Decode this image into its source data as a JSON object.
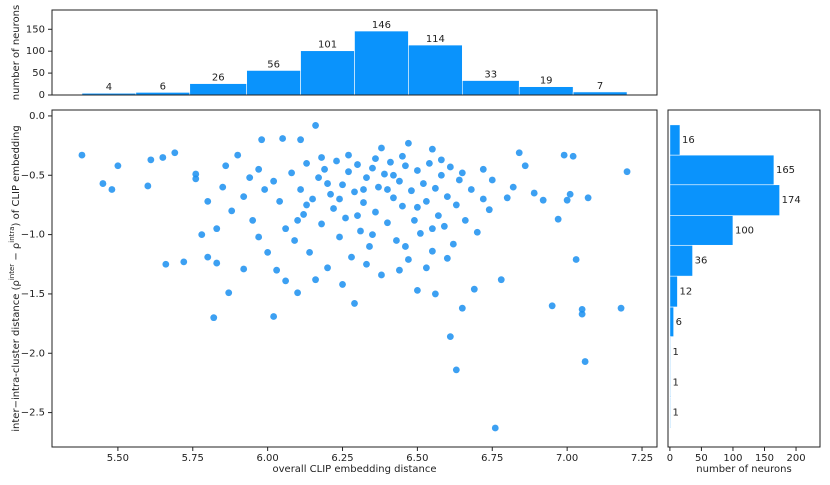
{
  "chart_data": [
    {
      "type": "histogram",
      "ylabel": "number of neurons",
      "bins": [
        5.38,
        5.56,
        5.74,
        5.93,
        6.11,
        6.29,
        6.47,
        6.65,
        6.84,
        7.02,
        7.2
      ],
      "values": [
        4,
        6,
        26,
        56,
        101,
        146,
        114,
        33,
        19,
        7
      ],
      "xlim": [
        5.28,
        7.3
      ],
      "ylim": [
        0,
        194
      ],
      "yticks": [
        0,
        50,
        100,
        150
      ],
      "color": "#0a93fc"
    },
    {
      "type": "scatter",
      "xlabel": "overall CLIP embedding distance",
      "ylabel_parts": [
        "inter−intra-cluster distance (",
        "ρ",
        "inter",
        " − ",
        "ρ",
        "intra",
        ") of CLIP embedding"
      ],
      "x": [
        5.38,
        5.45,
        5.48,
        5.5,
        5.6,
        5.61,
        5.65,
        5.69,
        5.66,
        5.72,
        5.76,
        5.76,
        5.8,
        5.82,
        5.83,
        5.87,
        5.92,
        5.98,
        6.02,
        6.06,
        6.1,
        6.16,
        6.05,
        6.11,
        6.29,
        6.5,
        6.56,
        6.61,
        6.63,
        6.76,
        6.65,
        6.69,
        6.78,
        6.82,
        6.84,
        6.86,
        6.89,
        6.92,
        6.95,
        6.97,
        6.99,
        7.0,
        7.01,
        7.02,
        7.03,
        7.05,
        7.05,
        7.06,
        7.07,
        7.18,
        7.2,
        5.86,
        5.9,
        5.94,
        5.97,
        6.75,
        6.74,
        6.8,
        6.72,
        6.55,
        6.38,
        6.47,
        6.02,
        6.04,
        6.06,
        6.08,
        6.09,
        6.11,
        6.12,
        6.13,
        6.14,
        6.15,
        6.17,
        6.18,
        6.19,
        6.2,
        6.21,
        6.22,
        6.23,
        6.24,
        6.25,
        6.26,
        6.27,
        6.28,
        6.29,
        6.3,
        6.31,
        6.32,
        6.33,
        6.34,
        6.35,
        6.36,
        6.37,
        6.38,
        6.39,
        6.4,
        6.41,
        6.42,
        6.43,
        6.44,
        6.45,
        6.46,
        6.47,
        6.48,
        6.49,
        6.5,
        6.51,
        6.52,
        6.53,
        6.54,
        6.55,
        6.56,
        6.57,
        6.58,
        6.59,
        6.6,
        6.61,
        6.62,
        6.63,
        6.64,
        6.66,
        6.68,
        6.7,
        6.72,
        5.92,
        5.95,
        5.97,
        5.99,
        5.88,
        5.85,
        5.8,
        5.78,
        5.83,
        6.0,
        6.03,
        6.16,
        6.25,
        6.33,
        6.44,
        6.53,
        6.6,
        6.18,
        6.27,
        6.36,
        6.45,
        6.58,
        6.1,
        6.2,
        6.3,
        6.4,
        6.5,
        6.35,
        6.46,
        6.24,
        6.55,
        6.42,
        6.32,
        6.13,
        6.65
      ],
      "values": [
        -0.33,
        -0.57,
        -0.62,
        -0.42,
        -0.59,
        -0.37,
        -0.35,
        -0.31,
        -1.25,
        -1.23,
        -0.49,
        -0.53,
        -1.19,
        -1.7,
        -1.24,
        -1.49,
        -1.29,
        -0.2,
        -1.69,
        -1.39,
        -1.49,
        -0.08,
        -0.19,
        -0.2,
        -1.58,
        -1.47,
        -1.5,
        -1.86,
        -2.14,
        -2.63,
        -1.62,
        -1.46,
        -1.38,
        -0.6,
        -0.31,
        -0.42,
        -0.65,
        -0.71,
        -1.6,
        -0.87,
        -0.33,
        -0.71,
        -0.66,
        -0.34,
        -1.21,
        -1.67,
        -1.63,
        -2.07,
        -0.69,
        -1.62,
        -0.47,
        -0.42,
        -0.33,
        -0.52,
        -0.45,
        -0.54,
        -0.79,
        -0.69,
        -0.45,
        -0.28,
        -0.27,
        -0.23,
        -0.55,
        -0.72,
        -0.95,
        -0.48,
        -1.05,
        -0.62,
        -0.83,
        -0.4,
        -1.15,
        -0.7,
        -0.52,
        -0.91,
        -0.45,
        -1.28,
        -0.66,
        -0.78,
        -0.38,
        -1.02,
        -0.58,
        -0.86,
        -0.47,
        -1.19,
        -0.64,
        -0.41,
        -0.97,
        -0.73,
        -0.52,
        -1.1,
        -0.44,
        -0.81,
        -0.6,
        -1.34,
        -0.49,
        -0.9,
        -0.39,
        -0.69,
        -1.05,
        -0.55,
        -0.76,
        -0.42,
        -1.21,
        -0.63,
        -0.88,
        -0.46,
        -0.99,
        -0.57,
        -0.72,
        -0.4,
        -1.14,
        -0.61,
        -0.84,
        -0.5,
        -0.93,
        -0.68,
        -0.43,
        -1.08,
        -0.75,
        -0.54,
        -0.88,
        -0.62,
        -0.98,
        -0.7,
        -0.68,
        -0.88,
        -1.02,
        -0.62,
        -0.8,
        -0.6,
        -0.72,
        -1.0,
        -0.95,
        -1.15,
        -1.3,
        -1.38,
        -1.42,
        -1.25,
        -1.3,
        -1.28,
        -1.2,
        -0.35,
        -0.33,
        -0.36,
        -0.34,
        -0.37,
        -0.88,
        -0.57,
        -0.84,
        -0.62,
        -0.77,
        -1.0,
        -1.1,
        -0.7,
        -0.95,
        -0.5,
        -0.62,
        -0.75,
        -0.48
      ],
      "xlim": [
        5.28,
        7.3
      ],
      "ylim": [
        -2.79,
        0.05
      ],
      "xticks": [
        {
          "value": 5.5,
          "label": "5.50"
        },
        {
          "value": 5.75,
          "label": "5.75"
        },
        {
          "value": 6.0,
          "label": "6.00"
        },
        {
          "value": 6.25,
          "label": "6.25"
        },
        {
          "value": 6.5,
          "label": "6.50"
        },
        {
          "value": 6.75,
          "label": "6.75"
        },
        {
          "value": 7.0,
          "label": "7.00"
        },
        {
          "value": 7.25,
          "label": "7.25"
        }
      ],
      "yticks": [
        {
          "value": 0,
          "label": "0.0"
        },
        {
          "value": -0.5,
          "label": "−0.5"
        },
        {
          "value": -1.0,
          "label": "−1.0"
        },
        {
          "value": -1.5,
          "label": "−1.5"
        },
        {
          "value": -2.0,
          "label": "−2.0"
        },
        {
          "value": -2.5,
          "label": "−2.5"
        }
      ],
      "color": "#1a8ff0"
    },
    {
      "type": "histogram",
      "orientation": "horizontal",
      "xlabel": "number of neurons",
      "bins": [
        -2.63,
        -2.37,
        -2.12,
        -1.86,
        -1.61,
        -1.35,
        -1.09,
        -0.84,
        -0.58,
        -0.33,
        -0.075
      ],
      "values": [
        1,
        1,
        1,
        6,
        12,
        36,
        100,
        174,
        165,
        16
      ],
      "xlim": [
        -3,
        238
      ],
      "xticks": [
        0,
        50,
        100,
        150,
        200
      ],
      "ylim": [
        -2.79,
        0.05
      ],
      "color": "#0a93fc"
    }
  ]
}
